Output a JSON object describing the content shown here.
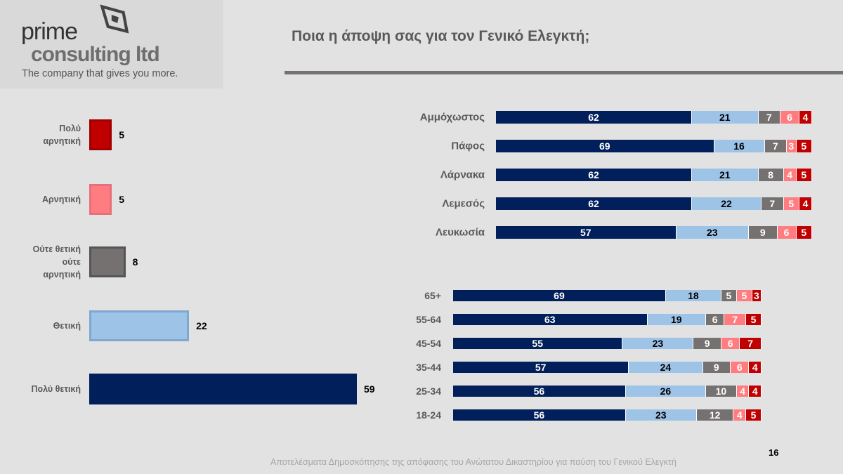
{
  "logo": {
    "line1": "prime",
    "line2": "consulting ltd",
    "tagline": "The company that gives you more."
  },
  "title": "Ποια η άποψη σας για τον Γενικό Ελεγκτή;",
  "footer": "Αποτελέσματα Δημοσκόπησης της απόφασης του Ανώτατου Δικαστηρίου για παύση του Γενικού Ελεγκτή",
  "page_number": "16",
  "colors": {
    "very_negative": "#c00000",
    "negative": "#ff7c80",
    "neutral": "#767171",
    "positive": "#9dc3e6",
    "very_positive": "#001f5b"
  },
  "chart_data": [
    {
      "type": "bar",
      "orientation": "horizontal",
      "categories": [
        "Πολύ αρνητική",
        "Αρνητική",
        "Ούτε θετική ούτε αρνητική",
        "Θετική",
        "Πολύ θετική"
      ],
      "values": [
        5,
        5,
        8,
        22,
        59
      ]
    },
    {
      "type": "bar",
      "orientation": "horizontal",
      "stacked": true,
      "categories": [
        "Αμμόχωστος",
        "Πάφος",
        "Λάρνακα",
        "Λεμεσός",
        "Λευκωσία"
      ],
      "series": [
        {
          "values": [
            62,
            69,
            62,
            62,
            57
          ]
        },
        {
          "values": [
            21,
            16,
            21,
            22,
            23
          ]
        },
        {
          "values": [
            7,
            7,
            8,
            7,
            9
          ]
        },
        {
          "values": [
            6,
            3,
            4,
            5,
            6
          ]
        },
        {
          "values": [
            4,
            5,
            5,
            4,
            5
          ]
        }
      ]
    },
    {
      "type": "bar",
      "orientation": "horizontal",
      "stacked": true,
      "categories": [
        "65+",
        "55-64",
        "45-54",
        "35-44",
        "25-34",
        "18-24"
      ],
      "series": [
        {
          "values": [
            69,
            63,
            55,
            57,
            56,
            56
          ]
        },
        {
          "values": [
            18,
            19,
            23,
            24,
            26,
            23
          ]
        },
        {
          "values": [
            5,
            6,
            9,
            9,
            10,
            12
          ]
        },
        {
          "values": [
            5,
            7,
            6,
            6,
            4,
            4
          ]
        },
        {
          "values": [
            3,
            5,
            7,
            4,
            4,
            5
          ]
        }
      ]
    }
  ]
}
